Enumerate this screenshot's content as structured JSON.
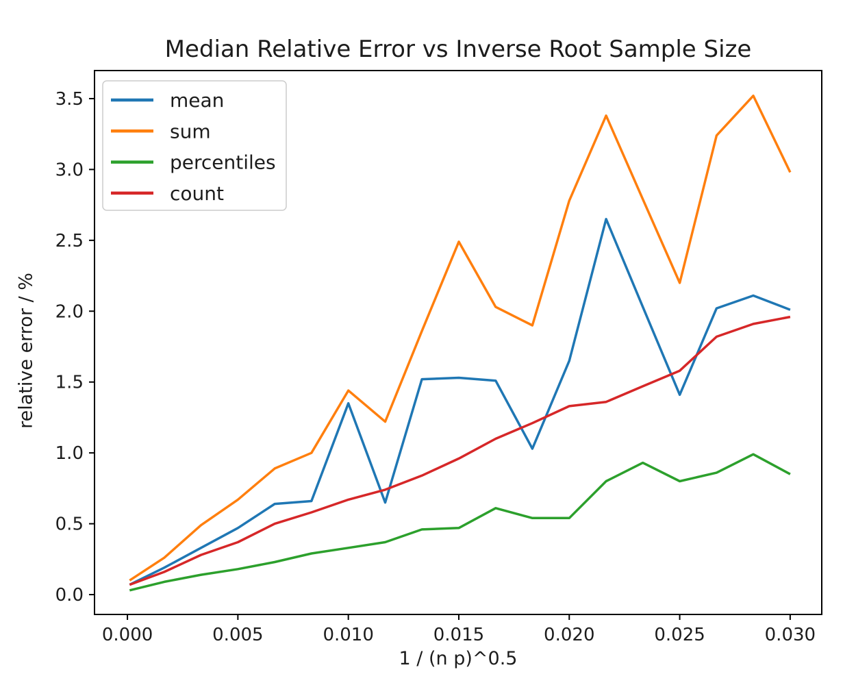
{
  "figure": {
    "title": "Median Relative Error vs Inverse Root Sample Size",
    "xlabel": "1 / (n p)^0.5",
    "ylabel": "relative error / %"
  },
  "chart_data": {
    "type": "line",
    "title": "Median Relative Error vs Inverse Root Sample Size",
    "xlabel": "1 / (n p)^0.5",
    "ylabel": "relative error / %",
    "xlim": [
      -0.00149,
      0.03143
    ],
    "ylim": [
      -0.14,
      3.698
    ],
    "grid": false,
    "legend_position": "upper left",
    "axis_color": "#000000",
    "x_ticks": {
      "values": [
        0.0,
        0.005,
        0.01,
        0.015,
        0.02,
        0.025,
        0.03
      ],
      "labels": [
        "0.000",
        "0.005",
        "0.010",
        "0.015",
        "0.020",
        "0.025",
        "0.030"
      ]
    },
    "y_ticks": {
      "values": [
        0.0,
        0.5,
        1.0,
        1.5,
        2.0,
        2.5,
        3.0,
        3.5
      ],
      "labels": [
        "0.0",
        "0.5",
        "1.0",
        "1.5",
        "2.0",
        "2.5",
        "3.0",
        "3.5"
      ]
    },
    "x": [
      0.0001,
      0.00167,
      0.00333,
      0.005,
      0.00667,
      0.00833,
      0.01,
      0.01167,
      0.01333,
      0.015,
      0.01667,
      0.01833,
      0.02,
      0.02167,
      0.02333,
      0.025,
      0.02667,
      0.02833,
      0.03
    ],
    "series": [
      {
        "name": "mean",
        "color": "#1f77b4",
        "values": [
          0.07,
          0.19,
          0.33,
          0.47,
          0.64,
          0.66,
          1.35,
          0.65,
          1.52,
          1.53,
          1.51,
          1.03,
          1.65,
          2.65,
          2.03,
          1.41,
          2.02,
          2.11,
          2.01
        ]
      },
      {
        "name": "sum",
        "color": "#ff7f0e",
        "values": [
          0.1,
          0.26,
          0.49,
          0.67,
          0.89,
          1.0,
          1.44,
          1.22,
          1.86,
          2.49,
          2.03,
          1.9,
          2.78,
          3.38,
          2.79,
          2.2,
          3.24,
          3.52,
          2.98
        ]
      },
      {
        "name": "percentiles",
        "color": "#2ca02c",
        "values": [
          0.03,
          0.09,
          0.14,
          0.18,
          0.23,
          0.29,
          0.33,
          0.37,
          0.46,
          0.47,
          0.61,
          0.54,
          0.54,
          0.8,
          0.93,
          0.8,
          0.86,
          0.99,
          0.85
        ]
      },
      {
        "name": "count",
        "color": "#d62728",
        "values": [
          0.07,
          0.16,
          0.28,
          0.37,
          0.5,
          0.58,
          0.67,
          0.74,
          0.84,
          0.96,
          1.1,
          1.21,
          1.33,
          1.36,
          1.47,
          1.58,
          1.82,
          1.91,
          1.96
        ]
      }
    ]
  }
}
